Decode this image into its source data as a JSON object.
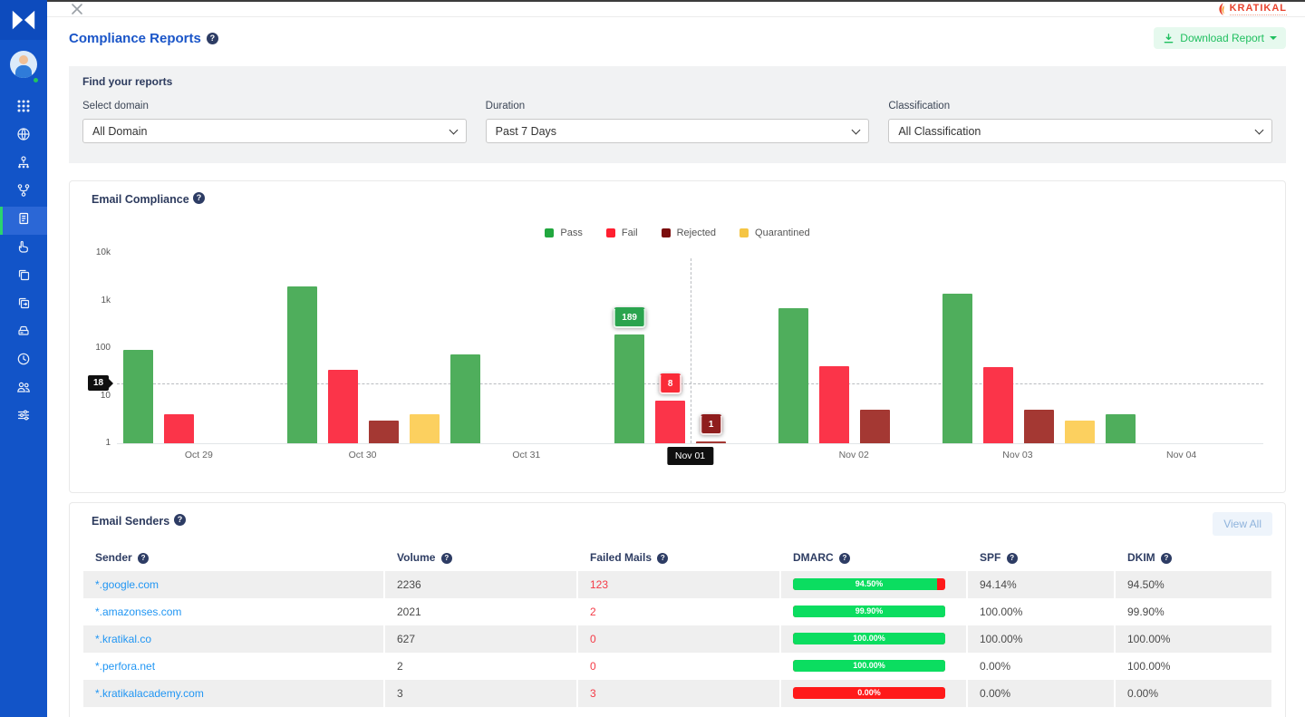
{
  "app": {
    "close_glyph": "close",
    "brand": "KRATIKAL"
  },
  "sidebar": {
    "icons": [
      "apps-grid-icon",
      "globe-icon",
      "sitemap-icon",
      "branch-icon",
      "reports-icon",
      "hand-gesture-icon",
      "copy-icon",
      "copy-sync-icon",
      "server-icon",
      "history-clock-icon",
      "users-icon",
      "filter-sliders-icon"
    ],
    "active_index": 4,
    "colors": {
      "bg": "#1254c8",
      "active_bg": "#2b67d6",
      "active_indicator": "#2ad36f",
      "online_dot": "#22c55e"
    }
  },
  "header": {
    "title": "Compliance Reports",
    "download_button": {
      "label": "Download Report",
      "color": "#1fbf5f",
      "bg": "#e6f9ee"
    }
  },
  "filters": {
    "panel_title": "Find your reports",
    "domain": {
      "label": "Select domain",
      "value": "All Domain"
    },
    "duration": {
      "label": "Duration",
      "value": "Past 7 Days"
    },
    "classification": {
      "label": "Classification",
      "value": "All Classification"
    }
  },
  "compliance_chart": {
    "title": "Email Compliance"
  },
  "chart_data": {
    "type": "bar",
    "scale": "log",
    "title": "Email Compliance",
    "categories": [
      "Oct 29",
      "Oct 30",
      "Oct 31",
      "Nov 01",
      "Nov 02",
      "Nov 03",
      "Nov 04"
    ],
    "series": [
      {
        "name": "Pass",
        "color": "#4fae5c",
        "legend_color": "#21a73e",
        "values": [
          90,
          2000,
          75,
          189,
          700,
          1400,
          4
        ]
      },
      {
        "name": "Fail",
        "color": "#fb3449",
        "legend_color": "#ff1f30",
        "values": [
          4,
          35,
          null,
          8,
          42,
          40,
          null
        ]
      },
      {
        "name": "Rejected",
        "color": "#a43833",
        "legend_color": "#7b0d0d",
        "values": [
          null,
          3,
          null,
          1,
          5,
          5,
          null
        ]
      },
      {
        "name": "Quarantined",
        "color": "#fcd05f",
        "legend_color": "#f5c544",
        "values": [
          null,
          4,
          null,
          null,
          null,
          3,
          null
        ]
      }
    ],
    "y_ticks": [
      "10k",
      "1k",
      "100",
      "10",
      "1"
    ],
    "ylim": [
      1,
      10000
    ],
    "legend": [
      "Pass",
      "Fail",
      "Rejected",
      "Quarantined"
    ],
    "legend_position": "top-center",
    "grid": false,
    "hover": {
      "category": "Nov 01",
      "values": {
        "Pass": "189",
        "Fail": "8",
        "Rejected": "1"
      },
      "tooltip_colors": {
        "Pass": "#2aa44e",
        "Fail": "#fa2b38",
        "Rejected": "#8f1d1d"
      },
      "crosshair_y_label": "18",
      "crosshair_y_value": 18
    }
  },
  "senders": {
    "title": "Email Senders",
    "view_all": "View All",
    "columns": [
      "Sender",
      "Volume",
      "Failed Mails",
      "DMARC",
      "SPF",
      "DKIM"
    ],
    "bar_colors": {
      "pass": "#0bdd60",
      "fail": "#ff1a1a"
    },
    "rows": [
      {
        "sender": "*.google.com",
        "volume": "2236",
        "failed": "123",
        "dmarc": "94.50%",
        "dmarc_pct": 94.5,
        "spf": "94.14%",
        "dkim": "94.50%"
      },
      {
        "sender": "*.amazonses.com",
        "volume": "2021",
        "failed": "2",
        "dmarc": "99.90%",
        "dmarc_pct": 99.9,
        "spf": "100.00%",
        "dkim": "99.90%"
      },
      {
        "sender": "*.kratikal.co",
        "volume": "627",
        "failed": "0",
        "dmarc": "100.00%",
        "dmarc_pct": 100,
        "spf": "100.00%",
        "dkim": "100.00%"
      },
      {
        "sender": "*.perfora.net",
        "volume": "2",
        "failed": "0",
        "dmarc": "100.00%",
        "dmarc_pct": 100,
        "spf": "0.00%",
        "dkim": "100.00%"
      },
      {
        "sender": "*.kratikalacademy.com",
        "volume": "3",
        "failed": "3",
        "dmarc": "0.00%",
        "dmarc_pct": 0,
        "spf": "0.00%",
        "dkim": "0.00%"
      }
    ]
  }
}
